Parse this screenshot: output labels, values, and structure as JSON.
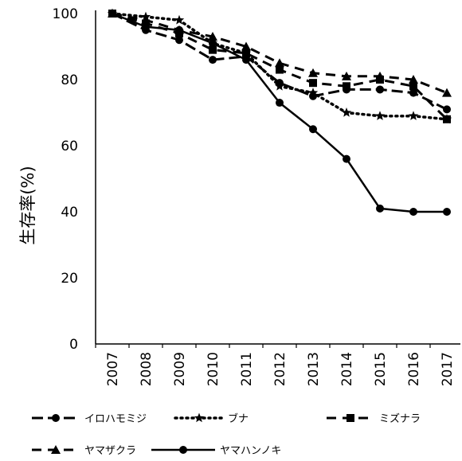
{
  "chart_data": {
    "type": "line",
    "x": [
      "2007",
      "2008",
      "2009",
      "2010",
      "2011",
      "2012",
      "2013",
      "2014",
      "2015",
      "2016",
      "2017"
    ],
    "xlabel": "",
    "ylabel": "生存率(%)",
    "ylim": [
      0,
      100
    ],
    "yticks": [
      0,
      20,
      40,
      60,
      80,
      100
    ],
    "grid": false,
    "legend_position": "bottom",
    "series": [
      {
        "name": "イロハモミジ",
        "style": "long-dash",
        "marker": "circle",
        "values": [
          100,
          95,
          92,
          86,
          87,
          79,
          75,
          77,
          77,
          76,
          71
        ]
      },
      {
        "name": "ブナ",
        "style": "dotted",
        "marker": "star",
        "values": [
          100,
          99,
          98,
          91,
          88,
          78,
          76,
          70,
          69,
          69,
          68
        ]
      },
      {
        "name": "ミズナラ",
        "style": "dash",
        "marker": "square",
        "values": [
          100,
          97,
          94,
          89,
          88,
          83,
          79,
          78,
          80,
          78,
          68
        ]
      },
      {
        "name": "ヤマザクラ",
        "style": "dash",
        "marker": "triangle",
        "values": [
          100,
          98,
          95,
          93,
          90,
          85,
          82,
          81,
          81,
          80,
          76
        ]
      },
      {
        "name": "ヤマハンノキ",
        "style": "solid",
        "marker": "circle",
        "values": [
          100,
          96,
          95,
          91,
          86,
          73,
          65,
          56,
          41,
          40,
          40
        ]
      }
    ]
  }
}
